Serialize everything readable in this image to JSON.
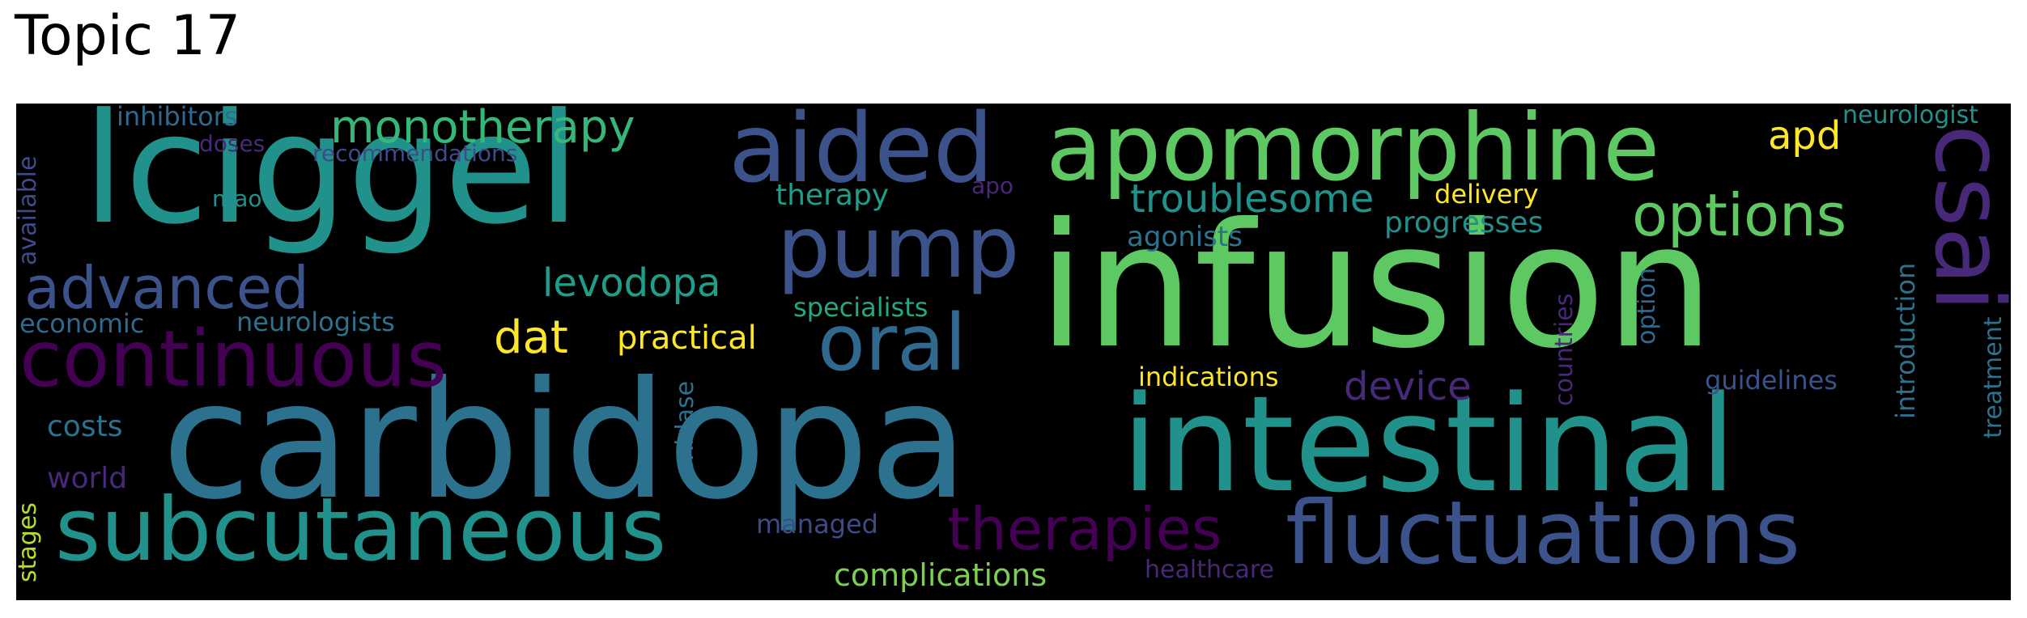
{
  "title": "Topic 17",
  "palette": {
    "background": "#000000",
    "dark_purple": "#440154",
    "purple": "#482878",
    "indigo": "#3e4a89",
    "blue": "#31688e",
    "teal_blue": "#26828e",
    "teal": "#1f9e89",
    "green": "#35b779",
    "light_green": "#6ece58",
    "lime": "#b5de2b",
    "yellow": "#fde725"
  },
  "words": [
    {
      "text": "infusion",
      "color": "#5ec962"
    },
    {
      "text": "carbidopa",
      "color": "#2c728e"
    },
    {
      "text": "intestinal",
      "color": "#21918c"
    },
    {
      "text": "lciggel",
      "color": "#21918c"
    },
    {
      "text": "apomorphine",
      "color": "#5ec962"
    },
    {
      "text": "subcutaneous",
      "color": "#21918c"
    },
    {
      "text": "fluctuations",
      "color": "#3b528b"
    },
    {
      "text": "aided",
      "color": "#3b528b"
    },
    {
      "text": "pump",
      "color": "#3b528b"
    },
    {
      "text": "continuous",
      "color": "#440154"
    },
    {
      "text": "oral",
      "color": "#31688e"
    },
    {
      "text": "csai",
      "color": "#482878"
    },
    {
      "text": "options",
      "color": "#5ec962"
    },
    {
      "text": "advanced",
      "color": "#3b528b"
    },
    {
      "text": "therapies",
      "color": "#440154"
    },
    {
      "text": "monotherapy",
      "color": "#35b779"
    },
    {
      "text": "troublesome",
      "color": "#21918c"
    },
    {
      "text": "levodopa",
      "color": "#1f9e89"
    },
    {
      "text": "dat",
      "color": "#fde725"
    },
    {
      "text": "apd",
      "color": "#fde725"
    },
    {
      "text": "device",
      "color": "#482878"
    },
    {
      "text": "practical",
      "color": "#fde725"
    },
    {
      "text": "complications",
      "color": "#7ad151"
    },
    {
      "text": "progresses",
      "color": "#21918c"
    },
    {
      "text": "therapy",
      "color": "#1f9e89"
    },
    {
      "text": "agonists",
      "color": "#2c728e"
    },
    {
      "text": "specialists",
      "color": "#22a884"
    },
    {
      "text": "indications",
      "color": "#fde725"
    },
    {
      "text": "delivery",
      "color": "#fde725"
    },
    {
      "text": "inhibitors",
      "color": "#31688e"
    },
    {
      "text": "neurologists",
      "color": "#2c728e"
    },
    {
      "text": "economic",
      "color": "#31688e"
    },
    {
      "text": "costs",
      "color": "#2c728e"
    },
    {
      "text": "world",
      "color": "#482878"
    },
    {
      "text": "managed",
      "color": "#3e4a89"
    },
    {
      "text": "guidelines",
      "color": "#3b528b"
    },
    {
      "text": "neurologist",
      "color": "#21918c"
    },
    {
      "text": "introduction",
      "color": "#2c728e"
    },
    {
      "text": "treatment",
      "color": "#2c728e"
    },
    {
      "text": "countries",
      "color": "#482878"
    },
    {
      "text": "option",
      "color": "#31688e"
    },
    {
      "text": "oxidase",
      "color": "#2c728e"
    },
    {
      "text": "available",
      "color": "#3e4a89"
    },
    {
      "text": "stages",
      "color": "#b5de2b"
    },
    {
      "text": "recommendations",
      "color": "#3e4a89"
    },
    {
      "text": "doses",
      "color": "#482878"
    },
    {
      "text": "mao",
      "color": "#21918c"
    },
    {
      "text": "apo",
      "color": "#482878"
    },
    {
      "text": "healthcare",
      "color": "#482878"
    }
  ]
}
